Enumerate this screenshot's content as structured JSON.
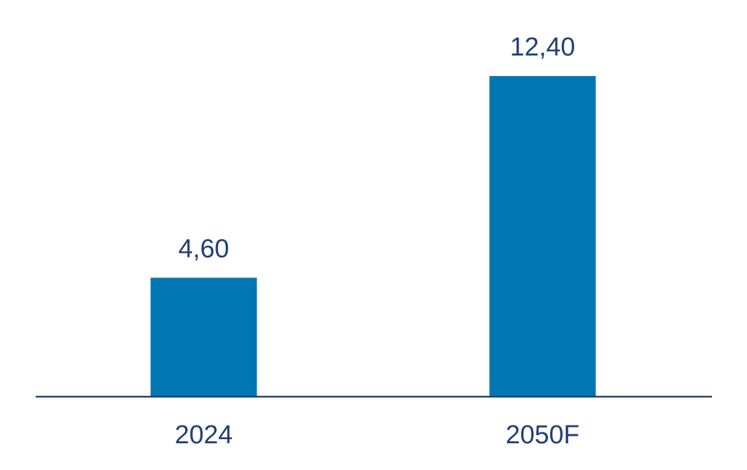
{
  "chart_data": {
    "type": "bar",
    "categories": [
      "2024",
      "2050F"
    ],
    "values": [
      4.6,
      12.4
    ],
    "value_labels": [
      "4,60",
      "12,40"
    ],
    "title": "",
    "xlabel": "",
    "ylabel": "",
    "ylim": [
      0,
      12.4
    ],
    "grid": false,
    "legend": "none",
    "colors": {
      "bar": "#0077b3",
      "axis": "#1f3f7a",
      "text": "#1f3f7a"
    }
  }
}
